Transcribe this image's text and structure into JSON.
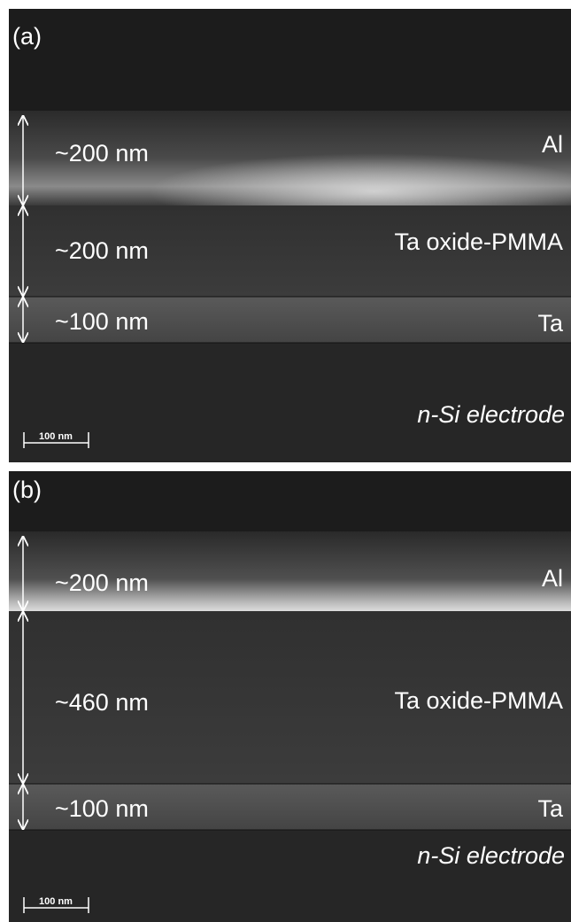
{
  "panels": [
    {
      "label": "(a)",
      "layers": [
        {
          "thickness": "~200 nm",
          "name": "Al"
        },
        {
          "thickness": "~200 nm",
          "name": "Ta oxide-PMMA"
        },
        {
          "thickness": "~100 nm",
          "name": "Ta"
        }
      ],
      "substrate": "n-Si electrode",
      "scale_bar": "100 nm"
    },
    {
      "label": "(b)",
      "layers": [
        {
          "thickness": "~200 nm",
          "name": "Al"
        },
        {
          "thickness": "~460 nm",
          "name": "Ta oxide-PMMA"
        },
        {
          "thickness": "~100 nm",
          "name": "Ta"
        }
      ],
      "substrate": "n-Si electrode",
      "scale_bar": "100 nm"
    }
  ]
}
